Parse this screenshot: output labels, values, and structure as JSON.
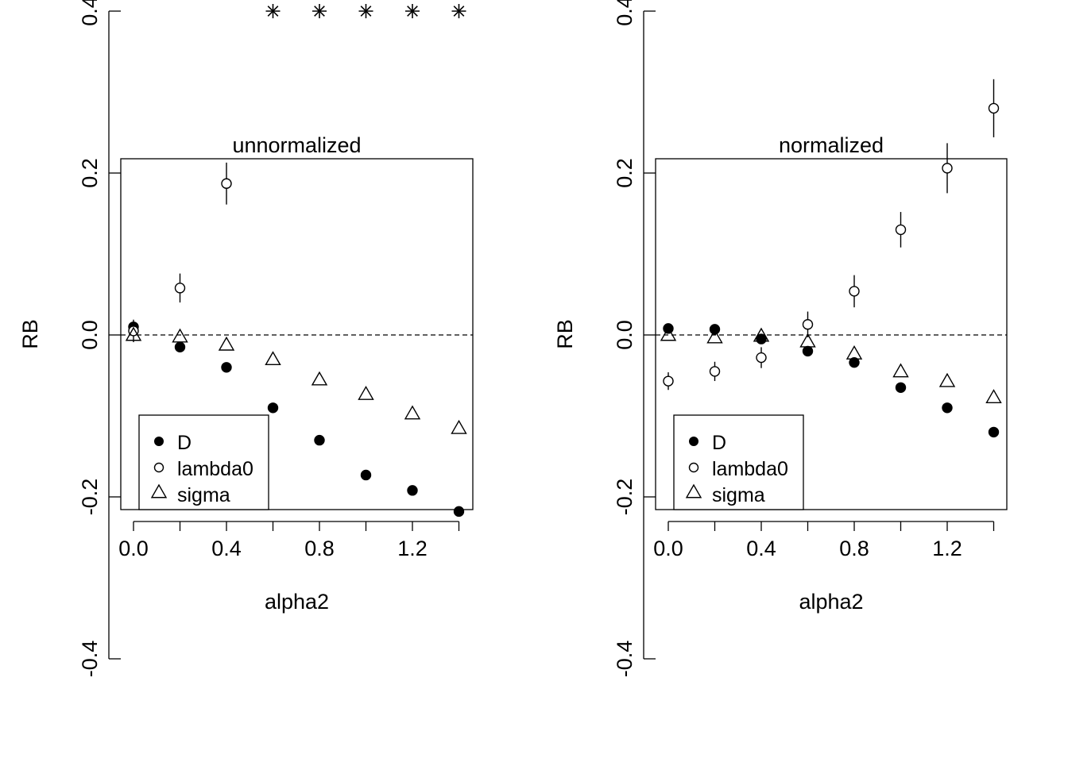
{
  "chart_data": [
    {
      "type": "scatter",
      "title": "unnormalized",
      "xlabel": "alpha2",
      "ylabel": "RB",
      "xlim": [
        -0.04,
        1.44
      ],
      "ylim": [
        -0.43,
        0.43
      ],
      "x_ticks": [
        "0.0",
        "0.4",
        "0.8",
        "1.2"
      ],
      "y_ticks": [
        "-0.4",
        "-0.2",
        "0.0",
        "0.2",
        "0.4"
      ],
      "reference_line": 0,
      "legend": {
        "position": "bottom-left",
        "entries": [
          "D",
          "lambda0",
          "sigma"
        ]
      },
      "x": [
        0.0,
        0.2,
        0.4,
        0.6,
        0.8,
        1.0,
        1.2,
        1.4
      ],
      "series": [
        {
          "name": "D",
          "marker": "filled-circle",
          "values": [
            0.01,
            -0.015,
            -0.04,
            -0.09,
            -0.13,
            -0.173,
            -0.192,
            -0.218
          ]
        },
        {
          "name": "lambda0",
          "marker": "open-circle",
          "values": [
            0.005,
            0.058,
            0.187,
            null,
            null,
            null,
            null,
            null
          ],
          "error": [
            0.008,
            0.012,
            0.02,
            0,
            0,
            0,
            0,
            0
          ]
        },
        {
          "name": "sigma",
          "marker": "open-triangle",
          "values": [
            0.0,
            -0.002,
            -0.012,
            -0.03,
            -0.055,
            -0.073,
            -0.097,
            -0.115
          ]
        },
        {
          "name": "",
          "marker": "asterisk",
          "values": [
            null,
            null,
            null,
            0.4,
            0.4,
            0.4,
            0.4,
            0.4
          ]
        }
      ]
    },
    {
      "type": "scatter",
      "title": "normalized",
      "xlabel": "alpha2",
      "ylabel": "RB",
      "xlim": [
        -0.04,
        1.44
      ],
      "ylim": [
        -0.43,
        0.43
      ],
      "x_ticks": [
        "0.0",
        "0.4",
        "0.8",
        "1.2"
      ],
      "y_ticks": [
        "-0.4",
        "-0.2",
        "0.0",
        "0.2",
        "0.4"
      ],
      "reference_line": 0,
      "legend": {
        "position": "bottom-left",
        "entries": [
          "D",
          "lambda0",
          "sigma"
        ]
      },
      "x": [
        0.0,
        0.2,
        0.4,
        0.6,
        0.8,
        1.0,
        1.2,
        1.4
      ],
      "series": [
        {
          "name": "D",
          "marker": "filled-circle",
          "values": [
            0.008,
            0.007,
            -0.005,
            -0.02,
            -0.034,
            -0.065,
            -0.09,
            -0.12
          ]
        },
        {
          "name": "lambda0",
          "marker": "open-circle",
          "values": [
            -0.057,
            -0.045,
            -0.028,
            0.013,
            0.054,
            0.13,
            0.206,
            0.28
          ],
          "error": [
            0.005,
            0.006,
            0.007,
            0.01,
            0.014,
            0.016,
            0.025,
            0.03
          ]
        },
        {
          "name": "sigma",
          "marker": "open-triangle",
          "values": [
            0.0,
            -0.003,
            -0.001,
            -0.008,
            -0.023,
            -0.045,
            -0.057,
            -0.077
          ]
        }
      ]
    }
  ]
}
